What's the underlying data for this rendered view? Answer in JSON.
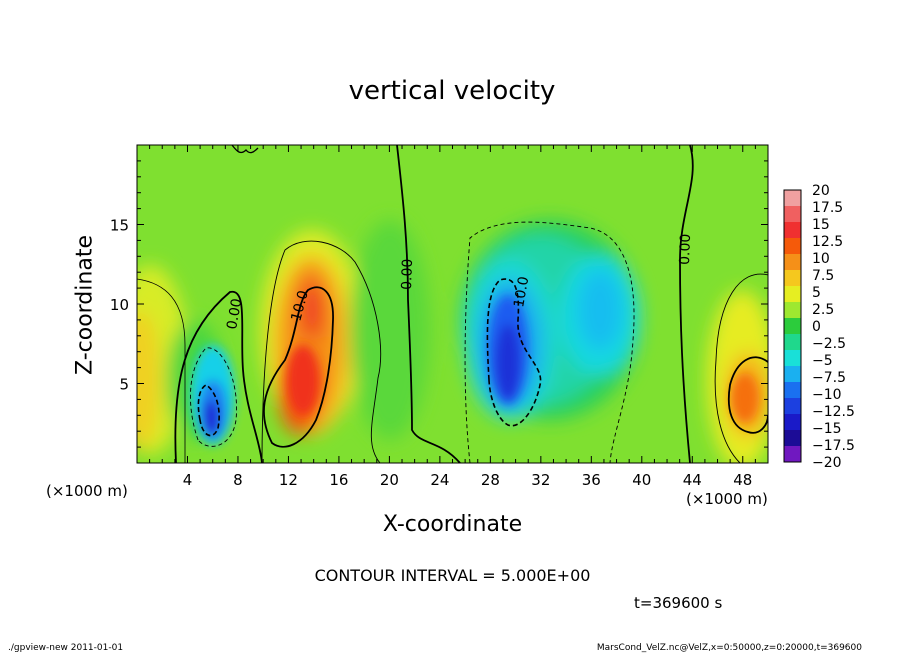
{
  "chart_data": {
    "type": "heatmap",
    "title": "vertical velocity",
    "xlabel": "X-coordinate",
    "ylabel": "Z-coordinate",
    "x_unit_label": "(×1000 m)",
    "y_unit_label": "(×1000 m)",
    "xlim": [
      0,
      50
    ],
    "ylim": [
      0,
      20
    ],
    "x_ticks": [
      4,
      8,
      12,
      16,
      20,
      24,
      28,
      32,
      36,
      40,
      44,
      48
    ],
    "y_ticks": [
      5,
      10,
      15
    ],
    "colorbar": {
      "levels": [
        20,
        17.5,
        15,
        12.5,
        10,
        7.5,
        5,
        2.5,
        0,
        -2.5,
        -5,
        -7.5,
        -10,
        -12.5,
        -15,
        -17.5,
        -20
      ],
      "labels": [
        "20",
        "17.5",
        "15",
        "12.5",
        "10",
        "7.5",
        "5",
        "2.5",
        "0",
        "−2.5",
        "−5",
        "−7.5",
        "−10",
        "−12.5",
        "−15",
        "−17.5",
        "−20"
      ],
      "colors": [
        "#f0a0a0",
        "#f06060",
        "#f03030",
        "#f55a0a",
        "#f59018",
        "#f5c81e",
        "#e6ee22",
        "#9ee830",
        "#2ccc3c",
        "#1fd88c",
        "#19e0d8",
        "#1ab0f0",
        "#1a70f0",
        "#1c40e0",
        "#1a1ac8",
        "#1c0c96",
        "#7018c0"
      ]
    },
    "contour_interval_text": "CONTOUR INTERVAL = 5.000E+00",
    "contour_labels": [
      "0.00",
      "0.00",
      "0.00",
      "10.0",
      "10.0"
    ],
    "cells": [
      {
        "x": 1.5,
        "z": 6,
        "value": 5
      },
      {
        "x": 6,
        "z": 3.5,
        "value": -15
      },
      {
        "x": 13.5,
        "z": 7,
        "value": 12.5
      },
      {
        "x": 29.5,
        "z": 7.5,
        "value": -12.5
      },
      {
        "x": 36,
        "z": 9,
        "value": -7.5
      },
      {
        "x": 48.5,
        "z": 4.5,
        "value": 12.5
      }
    ],
    "time_text": "t=369600 s",
    "footer_left": "./gpview-new  2011-01-01",
    "footer_right": "MarsCond_VelZ.nc@VelZ,x=0:50000,z=0:20000,t=369600"
  }
}
